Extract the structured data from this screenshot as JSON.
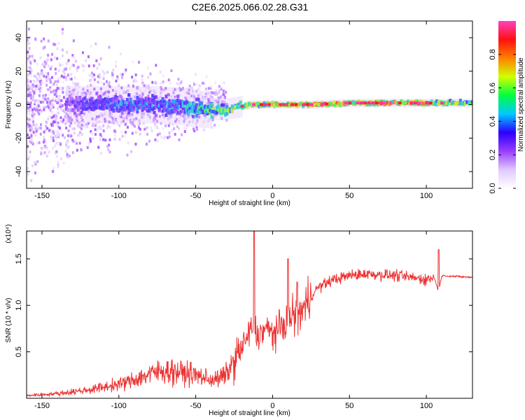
{
  "title": "C2E6.2025.066.02.28.G31",
  "chart_data": [
    {
      "type": "heatmap",
      "xlabel": "Height of straight line (km)",
      "ylabel": "Frequency (Hz)",
      "xlim": [
        -160,
        130
      ],
      "ylim": [
        -50,
        50
      ],
      "x_ticks": [
        -150,
        -100,
        -50,
        0,
        50,
        100
      ],
      "y_ticks": [
        -40,
        -20,
        0,
        20,
        40
      ],
      "colorbar": {
        "label": "Normalized spectral amplitude",
        "range": [
          0,
          1
        ],
        "ticks": [
          0.0,
          0.2,
          0.4,
          0.6,
          0.8
        ],
        "colormap": [
          "#ffffff",
          "#e0c8ff",
          "#9a3cff",
          "#2a00ff",
          "#00c8ff",
          "#00ff40",
          "#d0ff00",
          "#ff8000",
          "#ff1010",
          "#ff40c0"
        ]
      },
      "ridge": {
        "description_points_x": [
          -140,
          -120,
          -100,
          -80,
          -60,
          -45,
          -35,
          -25,
          -15,
          0,
          25,
          50,
          75,
          100,
          130
        ],
        "center_frequency_hz": [
          0,
          0,
          0,
          0,
          -1,
          -3,
          -3,
          -2,
          0,
          0,
          0,
          1,
          1,
          1,
          1
        ],
        "amplitude": [
          0.3,
          0.4,
          0.45,
          0.45,
          0.5,
          0.6,
          0.7,
          0.75,
          0.85,
          0.9,
          0.95,
          0.9,
          0.95,
          0.95,
          0.6
        ]
      }
    },
    {
      "type": "line",
      "xlabel": "Height of straight line (km)",
      "ylabel": "SNR (10 * v/v)",
      "exponent_label": "(x10⁴)",
      "xlim": [
        -160,
        130
      ],
      "ylim": [
        0,
        18000
      ],
      "x_ticks": [
        -150,
        -100,
        -50,
        0,
        50,
        100
      ],
      "y_ticks": [
        0.5,
        1.0,
        1.5
      ],
      "y_tick_labels": [
        "0.5",
        "1.0",
        "1.5"
      ],
      "color": "#ee3333",
      "series": [
        {
          "x": [
            -160,
            -150,
            -140,
            -130,
            -120,
            -110,
            -100,
            -90,
            -80,
            -70,
            -60,
            -50,
            -40,
            -35,
            -30,
            -25,
            -20,
            -15,
            -12,
            -10,
            -5,
            0,
            5,
            10,
            15,
            20,
            25,
            30,
            40,
            50,
            60,
            70,
            80,
            90,
            100,
            105,
            108,
            110,
            120,
            130
          ],
          "y": [
            300,
            400,
            500,
            700,
            900,
            1200,
            1500,
            2000,
            2600,
            3000,
            2800,
            2500,
            2000,
            2100,
            2600,
            4000,
            5500,
            7000,
            8000,
            6500,
            7500,
            7000,
            7500,
            8500,
            9000,
            9500,
            11000,
            12000,
            12800,
            13200,
            13400,
            13300,
            13200,
            13000,
            12800,
            13000,
            11500,
            13200,
            13100,
            13000
          ],
          "spikes": [
            {
              "x": -12,
              "y": 18000
            },
            {
              "x": 10,
              "y": 15000
            },
            {
              "x": 16,
              "y": 12500
            },
            {
              "x": 108,
              "y": 16000
            }
          ]
        }
      ]
    }
  ]
}
